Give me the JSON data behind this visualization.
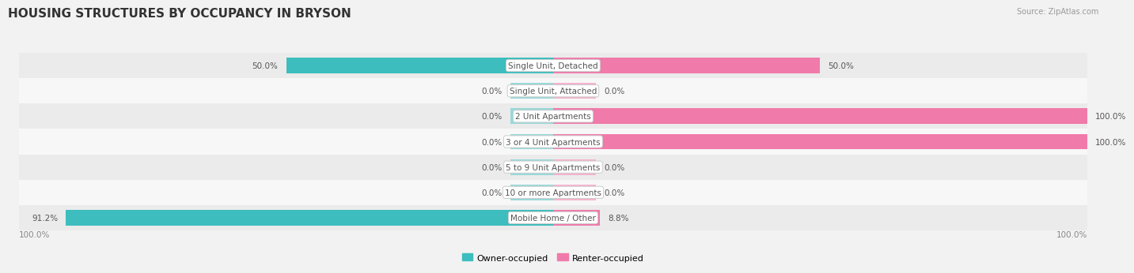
{
  "title": "HOUSING STRUCTURES BY OCCUPANCY IN BRYSON",
  "source": "Source: ZipAtlas.com",
  "categories": [
    "Single Unit, Detached",
    "Single Unit, Attached",
    "2 Unit Apartments",
    "3 or 4 Unit Apartments",
    "5 to 9 Unit Apartments",
    "10 or more Apartments",
    "Mobile Home / Other"
  ],
  "owner_pct": [
    50.0,
    0.0,
    0.0,
    0.0,
    0.0,
    0.0,
    91.2
  ],
  "renter_pct": [
    50.0,
    0.0,
    100.0,
    100.0,
    0.0,
    0.0,
    8.8
  ],
  "owner_color": "#3dbdbd",
  "renter_color": "#f07aaa",
  "owner_stub_color": "#99d8d8",
  "renter_stub_color": "#f5b3cc",
  "owner_label": "Owner-occupied",
  "renter_label": "Renter-occupied",
  "background_color": "#f2f2f2",
  "row_bg_light": "#f7f7f7",
  "row_bg_dark": "#ebebeb",
  "center_label_color": "#555555",
  "title_color": "#333333",
  "value_label_color": "#555555",
  "source_color": "#999999",
  "title_fontsize": 11,
  "label_fontsize": 7.5,
  "value_fontsize": 7.5,
  "bar_height": 0.62,
  "stub_size": 8.0,
  "xlim": 100,
  "bottom_left_label": "100.0%",
  "bottom_right_label": "100.0%"
}
